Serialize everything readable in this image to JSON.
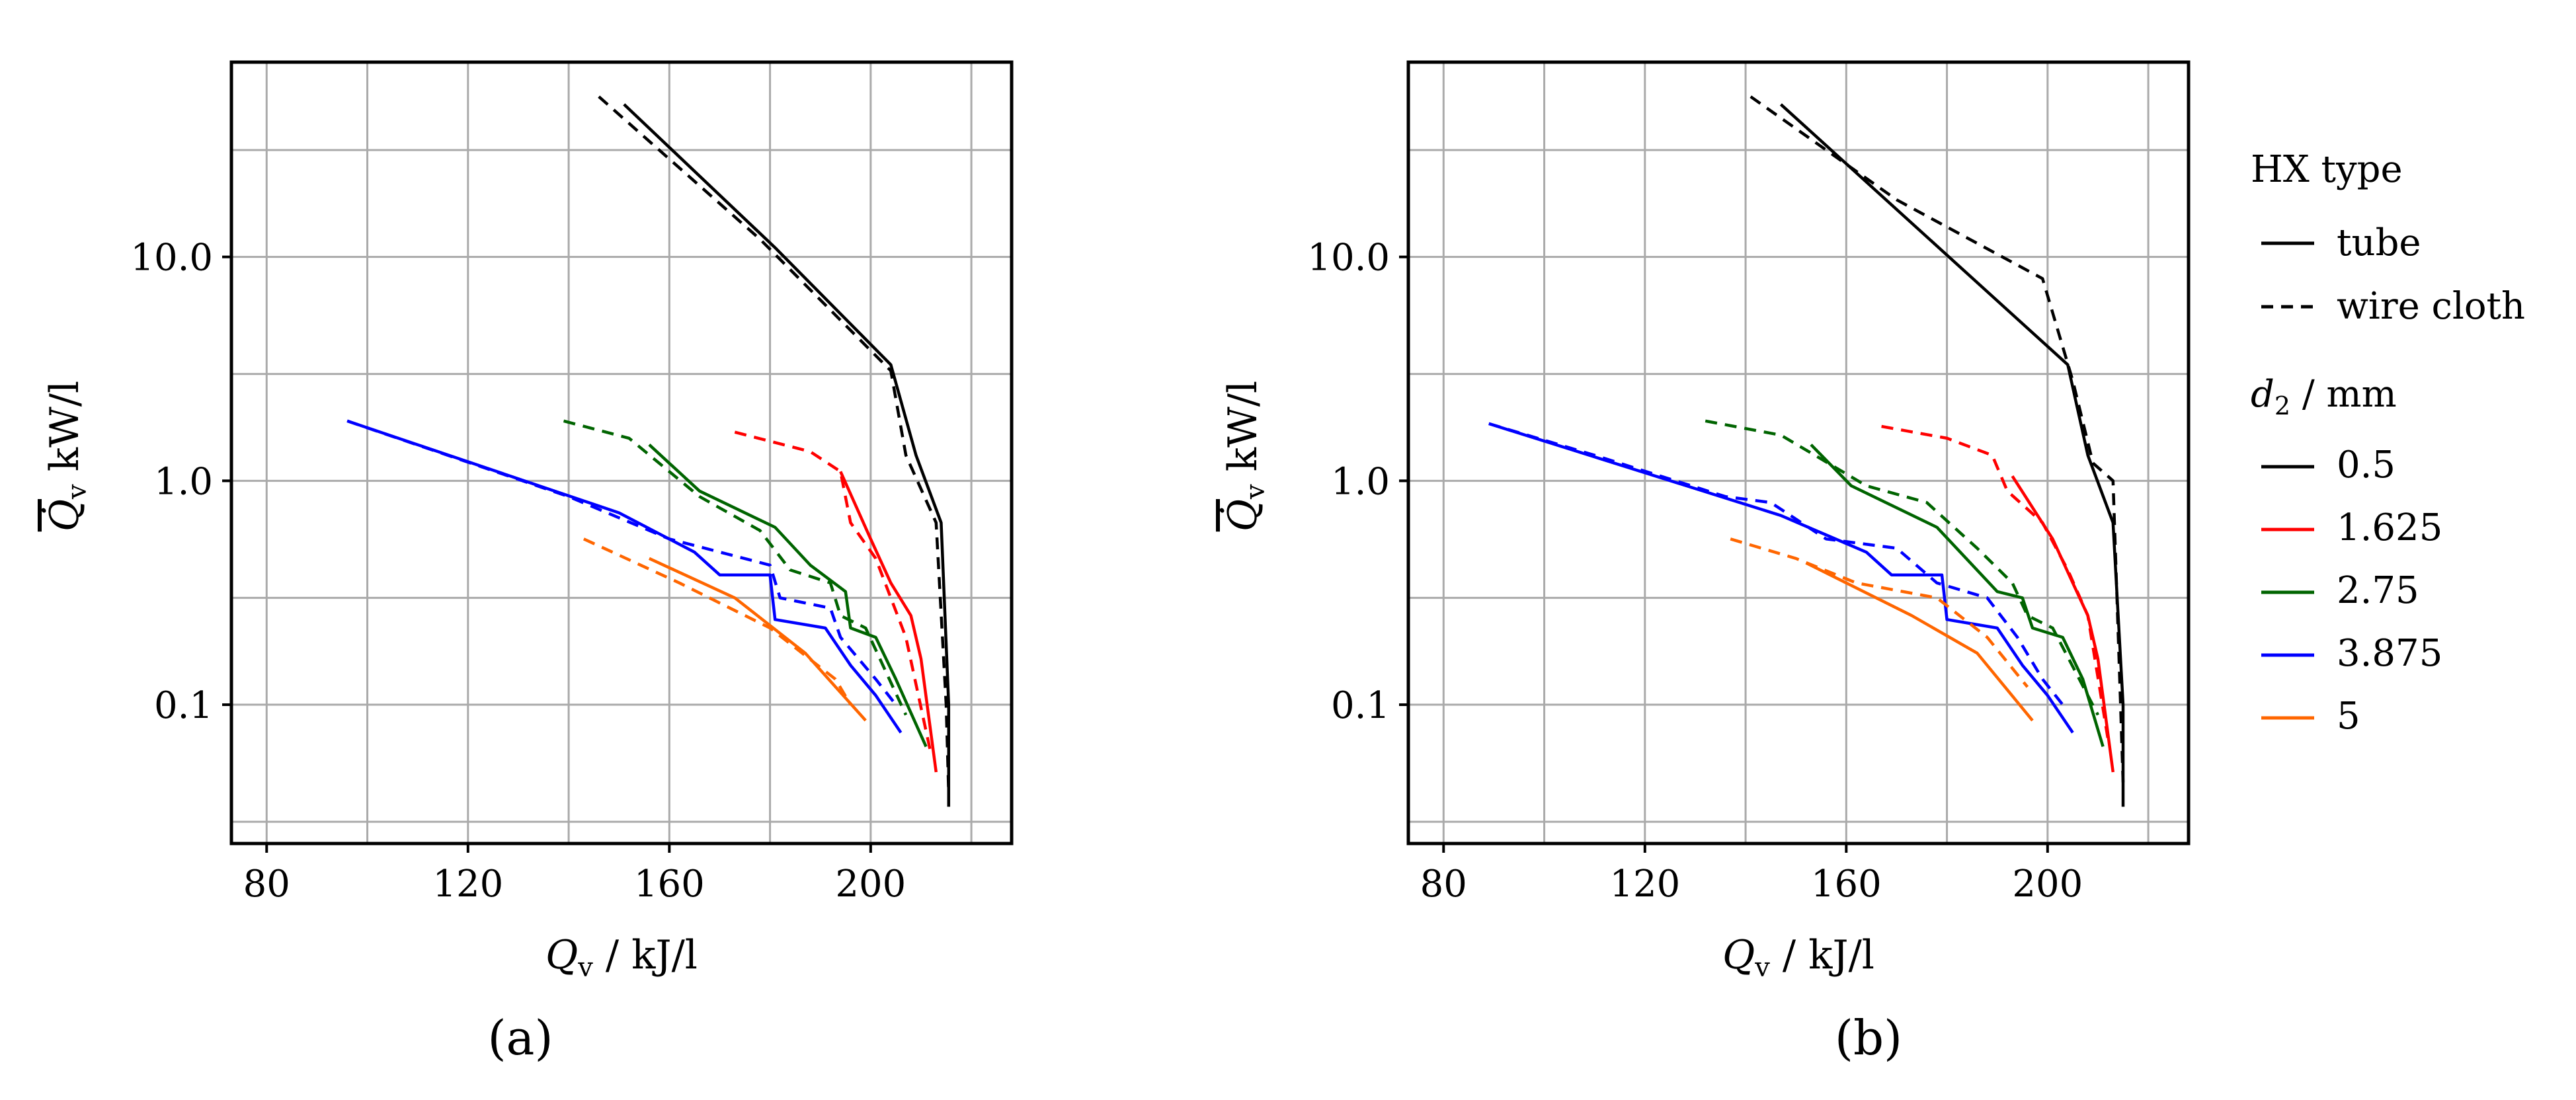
{
  "chart_data": [
    {
      "type": "line",
      "panel": "a",
      "panel_label": "(a)",
      "xlabel": "Q_v / kJ/l",
      "ylabel": "Q̇_v kW/l",
      "x_ticks": [
        "80",
        "120",
        "160",
        "200"
      ],
      "y_ticks": [
        "0.1",
        "1.0",
        "10.0"
      ],
      "xlim": [
        73,
        228
      ],
      "ylim_log10": [
        -1.62,
        1.87
      ],
      "yscale": "log",
      "grid": true,
      "series": [
        {
          "name": "tube 0.5",
          "hx": "tube",
          "d2": "0.5",
          "color": "#000000",
          "points": [
            [
              151,
              48
            ],
            [
              181,
              11
            ],
            [
              204,
              3.3
            ],
            [
              209,
              1.3
            ],
            [
              214,
              0.65
            ],
            [
              215.5,
              0.1
            ],
            [
              215.5,
              0.035
            ]
          ]
        },
        {
          "name": "wire cloth 0.5",
          "hx": "wire cloth",
          "d2": "0.5",
          "color": "#000000",
          "points": [
            [
              146,
              52
            ],
            [
              178,
              12
            ],
            [
              204,
              3.1
            ],
            [
              207,
              1.3
            ],
            [
              213,
              0.65
            ],
            [
              215,
              0.1
            ],
            [
              215.5,
              0.04
            ]
          ]
        },
        {
          "name": "tube 1.625",
          "hx": "tube",
          "d2": "1.625",
          "color": "#ff0000",
          "points": [
            [
              194,
              1.1
            ],
            [
              200,
              0.55
            ],
            [
              204,
              0.35
            ],
            [
              208,
              0.25
            ],
            [
              210,
              0.16
            ],
            [
              213,
              0.05
            ]
          ]
        },
        {
          "name": "wire cloth 1.625",
          "hx": "wire cloth",
          "d2": "1.625",
          "color": "#ff0000",
          "points": [
            [
              173,
              1.65
            ],
            [
              188,
              1.35
            ],
            [
              194,
              1.1
            ],
            [
              196,
              0.65
            ],
            [
              201,
              0.45
            ],
            [
              204,
              0.3
            ],
            [
              207,
              0.2
            ],
            [
              212,
              0.06
            ]
          ]
        },
        {
          "name": "tube 2.75",
          "hx": "tube",
          "d2": "2.75",
          "color": "#006400",
          "points": [
            [
              156,
              1.45
            ],
            [
              166,
              0.9
            ],
            [
              181,
              0.62
            ],
            [
              188,
              0.42
            ],
            [
              195,
              0.32
            ],
            [
              196,
              0.22
            ],
            [
              201,
              0.2
            ],
            [
              205,
              0.13
            ],
            [
              211,
              0.065
            ]
          ]
        },
        {
          "name": "wire cloth 2.75",
          "hx": "wire cloth",
          "d2": "2.75",
          "color": "#006400",
          "points": [
            [
              139,
              1.85
            ],
            [
              152,
              1.55
            ],
            [
              166,
              0.85
            ],
            [
              178,
              0.6
            ],
            [
              184,
              0.4
            ],
            [
              192,
              0.35
            ],
            [
              194,
              0.25
            ],
            [
              199,
              0.22
            ],
            [
              207,
              0.09
            ]
          ]
        },
        {
          "name": "tube 3.875",
          "hx": "tube",
          "d2": "3.875",
          "color": "#0000ff",
          "points": [
            [
              96,
              1.85
            ],
            [
              150,
              0.72
            ],
            [
              165,
              0.48
            ],
            [
              170,
              0.38
            ],
            [
              180,
              0.38
            ],
            [
              181,
              0.24
            ],
            [
              191,
              0.22
            ],
            [
              196,
              0.15
            ],
            [
              201,
              0.11
            ],
            [
              206,
              0.075
            ]
          ]
        },
        {
          "name": "wire cloth 3.875",
          "hx": "wire cloth",
          "d2": "3.875",
          "color": "#0000ff",
          "points": [
            [
              96,
              1.85
            ],
            [
              140,
              0.85
            ],
            [
              160,
              0.55
            ],
            [
              180,
              0.42
            ],
            [
              182,
              0.3
            ],
            [
              192,
              0.27
            ],
            [
              194,
              0.2
            ],
            [
              201,
              0.13
            ],
            [
              205,
              0.1
            ]
          ]
        },
        {
          "name": "tube 5",
          "hx": "tube",
          "d2": "5",
          "color": "#ff6600",
          "points": [
            [
              156,
              0.45
            ],
            [
              173,
              0.3
            ],
            [
              187,
              0.17
            ],
            [
              199,
              0.085
            ]
          ]
        },
        {
          "name": "wire cloth 5",
          "hx": "wire cloth",
          "d2": "5",
          "color": "#ff6600",
          "points": [
            [
              143,
              0.55
            ],
            [
              162,
              0.35
            ],
            [
              180,
              0.22
            ],
            [
              193,
              0.13
            ],
            [
              196,
              0.1
            ]
          ]
        }
      ]
    },
    {
      "type": "line",
      "panel": "b",
      "panel_label": "(b)",
      "xlabel": "Q_v / kJ/l",
      "ylabel": "Q̇_v kW/l",
      "x_ticks": [
        "80",
        "120",
        "160",
        "200"
      ],
      "y_ticks": [
        "0.1",
        "1.0",
        "10.0"
      ],
      "xlim": [
        73,
        228
      ],
      "ylim_log10": [
        -1.62,
        1.87
      ],
      "yscale": "log",
      "grid": true,
      "series": [
        {
          "name": "tube 0.5",
          "hx": "tube",
          "d2": "0.5",
          "color": "#000000",
          "points": [
            [
              147,
              48
            ],
            [
              204,
              3.3
            ],
            [
              208,
              1.3
            ],
            [
              213,
              0.65
            ],
            [
              215,
              0.1
            ],
            [
              215,
              0.035
            ]
          ]
        },
        {
          "name": "wire cloth 0.5",
          "hx": "wire cloth",
          "d2": "0.5",
          "color": "#000000",
          "points": [
            [
              141,
              52
            ],
            [
              170,
              18
            ],
            [
              199,
              8
            ],
            [
              205,
              2.8
            ],
            [
              209,
              1.2
            ],
            [
              213,
              1.0
            ],
            [
              214.5,
              0.1
            ],
            [
              215,
              0.045
            ]
          ]
        },
        {
          "name": "tube 1.625",
          "hx": "tube",
          "d2": "1.625",
          "color": "#ff0000",
          "points": [
            [
              193,
              1.05
            ],
            [
              201,
              0.55
            ],
            [
              205,
              0.35
            ],
            [
              208,
              0.25
            ],
            [
              210,
              0.16
            ],
            [
              213,
              0.05
            ]
          ]
        },
        {
          "name": "wire cloth 1.625",
          "hx": "wire cloth",
          "d2": "1.625",
          "color": "#ff0000",
          "points": [
            [
              167,
              1.75
            ],
            [
              180,
              1.55
            ],
            [
              189,
              1.3
            ],
            [
              192,
              0.9
            ],
            [
              199,
              0.65
            ],
            [
              204,
              0.4
            ],
            [
              208,
              0.25
            ],
            [
              212,
              0.07
            ]
          ]
        },
        {
          "name": "tube 2.75",
          "hx": "tube",
          "d2": "2.75",
          "color": "#006400",
          "points": [
            [
              153,
              1.45
            ],
            [
              161,
              0.95
            ],
            [
              178,
              0.62
            ],
            [
              190,
              0.32
            ],
            [
              195,
              0.3
            ],
            [
              197,
              0.22
            ],
            [
              203,
              0.2
            ],
            [
              207,
              0.13
            ],
            [
              211,
              0.065
            ]
          ]
        },
        {
          "name": "wire cloth 2.75",
          "hx": "wire cloth",
          "d2": "2.75",
          "color": "#006400",
          "points": [
            [
              132,
              1.85
            ],
            [
              147,
              1.6
            ],
            [
              164,
              0.95
            ],
            [
              176,
              0.8
            ],
            [
              186,
              0.5
            ],
            [
              193,
              0.35
            ],
            [
              196,
              0.25
            ],
            [
              201,
              0.22
            ],
            [
              210,
              0.09
            ]
          ]
        },
        {
          "name": "tube 3.875",
          "hx": "tube",
          "d2": "3.875",
          "color": "#0000ff",
          "points": [
            [
              89,
              1.8
            ],
            [
              147,
              0.7
            ],
            [
              164,
              0.48
            ],
            [
              169,
              0.38
            ],
            [
              179,
              0.38
            ],
            [
              180,
              0.24
            ],
            [
              190,
              0.22
            ],
            [
              195,
              0.15
            ],
            [
              200,
              0.11
            ],
            [
              205,
              0.075
            ]
          ]
        },
        {
          "name": "wire cloth 3.875",
          "hx": "wire cloth",
          "d2": "3.875",
          "color": "#0000ff",
          "points": [
            [
              89,
              1.8
            ],
            [
              110,
              1.3
            ],
            [
              136,
              0.85
            ],
            [
              145,
              0.8
            ],
            [
              156,
              0.55
            ],
            [
              170,
              0.5
            ],
            [
              178,
              0.35
            ],
            [
              188,
              0.3
            ],
            [
              194,
              0.2
            ],
            [
              199,
              0.13
            ],
            [
              203,
              0.1
            ]
          ]
        },
        {
          "name": "tube 5",
          "hx": "tube",
          "d2": "5",
          "color": "#ff6600",
          "points": [
            [
              152,
              0.43
            ],
            [
              160,
              0.35
            ],
            [
              173,
              0.25
            ],
            [
              186,
              0.17
            ],
            [
              197,
              0.085
            ]
          ]
        },
        {
          "name": "wire cloth 5",
          "hx": "wire cloth",
          "d2": "5",
          "color": "#ff6600",
          "points": [
            [
              137,
              0.55
            ],
            [
              150,
              0.45
            ],
            [
              162,
              0.35
            ],
            [
              178,
              0.3
            ],
            [
              188,
              0.2
            ],
            [
              196,
              0.12
            ]
          ]
        }
      ]
    }
  ],
  "legend": {
    "hx_title": "HX type",
    "hx_entries": [
      {
        "label": "tube",
        "dash": "solid"
      },
      {
        "label": "wire cloth",
        "dash": "dashed"
      }
    ],
    "d2_title_symbol": "d",
    "d2_title_sub": "2",
    "d2_title_unit": " / mm",
    "d2_entries": [
      {
        "label": "0.5",
        "color": "#000000"
      },
      {
        "label": "1.625",
        "color": "#ff0000"
      },
      {
        "label": "2.75",
        "color": "#006400"
      },
      {
        "label": "3.875",
        "color": "#0000ff"
      },
      {
        "label": "5",
        "color": "#ff6600"
      }
    ]
  },
  "axis_text": {
    "x_symbol": "Q",
    "x_sub": "v",
    "x_unit": " / kJ/l",
    "y_symbol": "Q̇",
    "y_sub": "v",
    "y_unit": " kW/l"
  }
}
